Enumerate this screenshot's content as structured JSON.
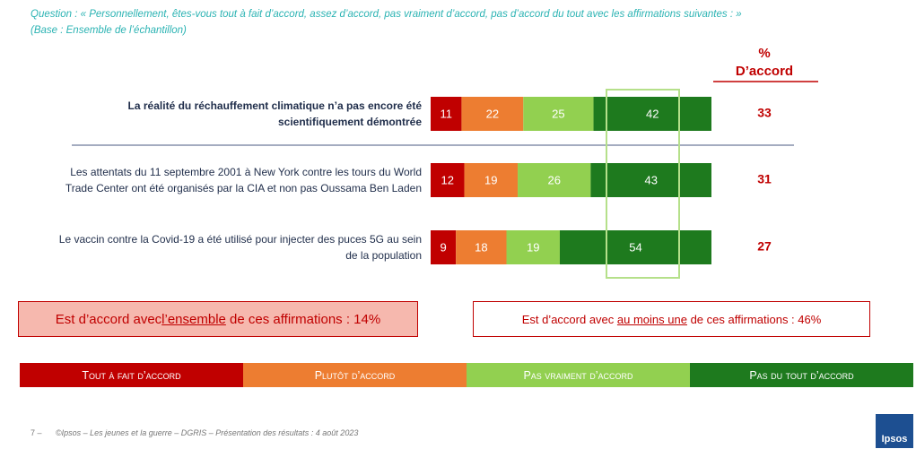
{
  "question": "Question : « Personnellement, êtes-vous tout à fait d’accord, assez d’accord, pas vraiment d’accord, pas d’accord du tout avec les affirmations suivantes : »",
  "base": "(Base : Ensemble de l’échantillon)",
  "chart_data": {
    "type": "bar",
    "orientation": "horizontal",
    "stacked": true,
    "categories": [
      "La réalité du réchauffement climatique n’a pas encore été scientifiquement démontrée",
      "Les attentats du 11 septembre 2001 à New York contre les tours du World Trade Center ont été organisés par la CIA et non pas Oussama Ben Laden",
      "Le vaccin contre la Covid-19 a été utilisé pour injecter des puces 5G au sein de la population"
    ],
    "series": [
      {
        "name": "Tout à fait d’accord",
        "color": "#c00000",
        "values": [
          11,
          12,
          9
        ]
      },
      {
        "name": "Plutôt d’accord",
        "color": "#ed7d31",
        "values": [
          22,
          19,
          18
        ]
      },
      {
        "name": "Pas vraiment d’accord",
        "color": "#92d050",
        "values": [
          25,
          26,
          19
        ]
      },
      {
        "name": "Pas du tout d’accord",
        "color": "#1e7a1e",
        "values": [
          42,
          43,
          54
        ]
      }
    ],
    "xlim": [
      0,
      100
    ]
  },
  "agree_header": {
    "symbol": "%",
    "label": "D’accord"
  },
  "agree_values": [
    33,
    31,
    27
  ],
  "summary": [
    {
      "before": "Est d’accord avec ",
      "emphasis": "l’ensemble",
      "after": " de ces affirmations : 14%"
    },
    {
      "before": "Est d’accord avec ",
      "emphasis": "au moins une",
      "after": " de ces affirmations : 46%"
    }
  ],
  "footer": {
    "page": "7 –",
    "text": "©Ipsos – Les jeunes et la guerre – DGRIS – Présentation des résultats : 4 août 2023"
  },
  "logo": "Ipsos"
}
